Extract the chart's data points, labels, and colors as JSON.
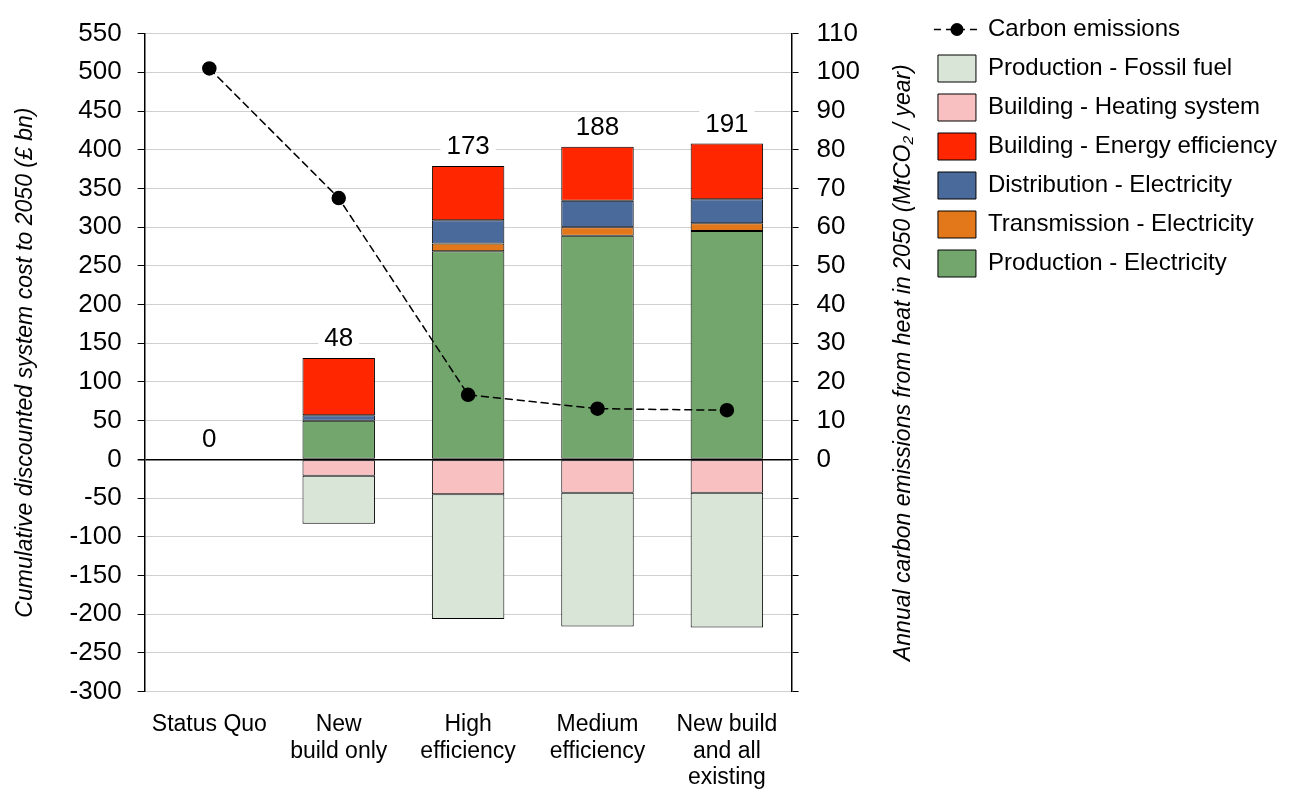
{
  "chart_data": {
    "type": "bar",
    "stacked": true,
    "categories": [
      "Status Quo",
      "New build only",
      "High efficiency",
      "Medium efficiency",
      "New build and all existing"
    ],
    "ylabel": "Cumulative discounted system cost to 2050 (£ bn)",
    "y2label": "Annual carbon emissions from heat in 2050 (MtCO₂ / year)",
    "ylim": [
      -300,
      550
    ],
    "yticks": [
      -300,
      -250,
      -200,
      -150,
      -100,
      -50,
      0,
      50,
      100,
      150,
      200,
      250,
      300,
      350,
      400,
      450,
      500,
      550
    ],
    "y2lim": [
      -60,
      110
    ],
    "y2ticks": [
      {
        "value": -60,
        "label": null
      },
      {
        "value": -50,
        "label": null
      },
      {
        "value": -40,
        "label": null
      },
      {
        "value": -30,
        "label": null
      },
      {
        "value": -20,
        "label": null
      },
      {
        "value": -10,
        "label": null
      },
      0,
      10,
      20,
      30,
      40,
      50,
      60,
      70,
      80,
      90,
      100,
      110
    ],
    "grid": "y",
    "legend": "top right",
    "totals": [
      "0",
      "48",
      "173",
      "188",
      "191"
    ],
    "series": [
      {
        "name": "Carbon emissions",
        "type": "line",
        "axis": "y2",
        "color": "#000000",
        "marker": "circle",
        "line_style": "dashed",
        "values": [
          101,
          67.5,
          16.7,
          13.1,
          12.7
        ]
      },
      {
        "name": "Production - Electricity",
        "color": "#72a66c",
        "values": [
          0,
          50,
          269,
          289,
          295
        ]
      },
      {
        "name": "Transmission - Electricity",
        "color": "#e3781a",
        "values": [
          0,
          0,
          10,
          11,
          10
        ]
      },
      {
        "name": "Distribution - Electricity",
        "color": "#4a6a9b",
        "values": [
          0,
          7,
          30,
          34,
          31
        ]
      },
      {
        "name": "Building - Energy efficiency",
        "color": "#ff2600",
        "values": [
          0,
          74,
          70,
          70,
          72
        ]
      },
      {
        "name": "Building - Heating system",
        "color": "#f8c0c0",
        "values": [
          0,
          -21,
          -45,
          -43,
          -43
        ]
      },
      {
        "name": "Production - Fossil fuel",
        "color": "#d9e6d7",
        "values": [
          0,
          -62,
          -161,
          -173,
          -174
        ]
      }
    ]
  }
}
